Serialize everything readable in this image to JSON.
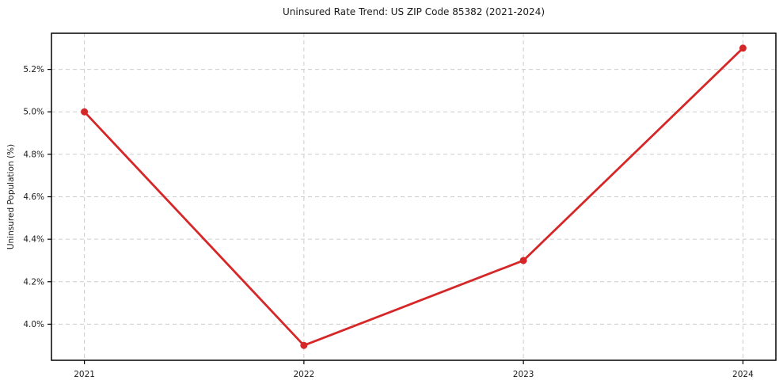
{
  "figure": {
    "background": "#ffffff"
  },
  "chart_data": {
    "type": "line",
    "title": "Uninsured Rate Trend: US ZIP Code 85382 (2021-2024)",
    "xlabel": "",
    "ylabel": "Uninsured Population (%)",
    "x": [
      2021,
      2022,
      2023,
      2024
    ],
    "series": [
      {
        "name": "Uninsured Rate",
        "values": [
          5.0,
          3.9,
          4.3,
          5.3
        ]
      }
    ],
    "xticks": {
      "values": [
        2021,
        2022,
        2023,
        2024
      ],
      "labels": [
        "2021",
        "2022",
        "2023",
        "2024"
      ]
    },
    "yticks": {
      "values": [
        4.0,
        4.2,
        4.4,
        4.6,
        4.8,
        5.0,
        5.2
      ],
      "labels": [
        "4.0%",
        "4.2%",
        "4.4%",
        "4.6%",
        "4.8%",
        "5.0%",
        "5.2%"
      ]
    },
    "xlim": [
      2020.85,
      2024.15
    ],
    "ylim": [
      3.83,
      5.37
    ],
    "grid": true,
    "grid_style": "dashed",
    "legend": false,
    "line_color": "#d62728",
    "marker": "circle",
    "grid_color": "#cccccc",
    "spine_color": "#000000",
    "text_color": "#1a1a1a"
  }
}
